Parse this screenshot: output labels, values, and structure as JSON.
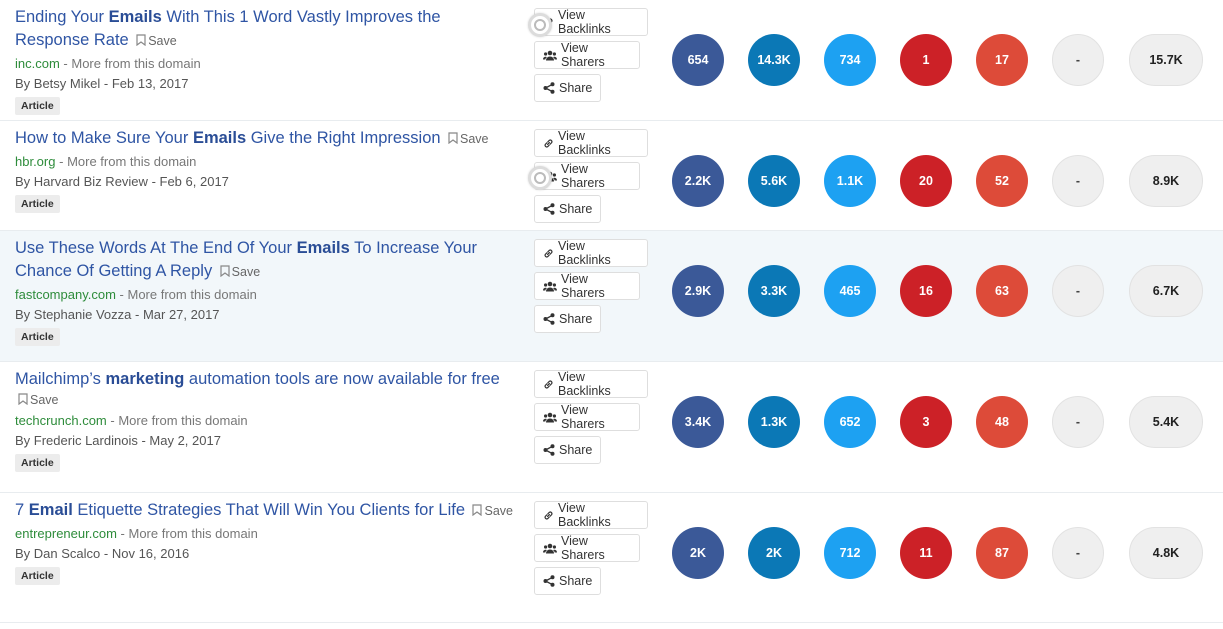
{
  "common": {
    "save_label": "Save",
    "more_from_domain": "More from this domain",
    "view_backlinks": "View Backlinks",
    "view_sharers": "View Sharers",
    "share": "Share"
  },
  "colors": {
    "facebook": "#3b5998",
    "linkedin": "#0b78b6",
    "twitter": "#1da1f2",
    "pinterest": "#cc2127",
    "googleplus": "#dd4b39",
    "empty": "#efefef",
    "title_link": "#2f55a4",
    "domain": "#2e8c3b"
  },
  "articles": [
    {
      "title_pre": "Ending Your ",
      "title_bold": "Emails",
      "title_post": " With This 1 Word Vastly Improves the Response Rate",
      "domain": "inc.com",
      "author": "By Betsy Mikel",
      "date": "Feb 13, 2017",
      "tag": "Article",
      "metrics": {
        "facebook": "654",
        "linkedin": "14.3K",
        "twitter": "734",
        "pinterest": "1",
        "googleplus": "17",
        "reddit": "-",
        "total": "15.7K"
      }
    },
    {
      "title_pre": "How to Make Sure Your ",
      "title_bold": "Emails",
      "title_post": " Give the Right Impression",
      "domain": "hbr.org",
      "author": "By Harvard Biz Review",
      "date": "Feb 6, 2017",
      "tag": "Article",
      "metrics": {
        "facebook": "2.2K",
        "linkedin": "5.6K",
        "twitter": "1.1K",
        "pinterest": "20",
        "googleplus": "52",
        "reddit": "-",
        "total": "8.9K"
      }
    },
    {
      "title_pre": "Use These Words At The End Of Your ",
      "title_bold": "Emails",
      "title_post": " To Increase Your Chance Of Getting A Reply",
      "domain": "fastcompany.com",
      "author": "By Stephanie Vozza",
      "date": "Mar 27, 2017",
      "tag": "Article",
      "metrics": {
        "facebook": "2.9K",
        "linkedin": "3.3K",
        "twitter": "465",
        "pinterest": "16",
        "googleplus": "63",
        "reddit": "-",
        "total": "6.7K"
      }
    },
    {
      "title_pre": "Mailchimp’s ",
      "title_bold": "marketing",
      "title_post": " automation tools are now available for free",
      "domain": "techcrunch.com",
      "author": "By Frederic Lardinois",
      "date": "May 2, 2017",
      "tag": "Article",
      "metrics": {
        "facebook": "3.4K",
        "linkedin": "1.3K",
        "twitter": "652",
        "pinterest": "3",
        "googleplus": "48",
        "reddit": "-",
        "total": "5.4K"
      }
    },
    {
      "title_pre": "7 ",
      "title_bold": "Email",
      "title_post": " Etiquette Strategies That Will Win You Clients for Life",
      "domain": "entrepreneur.com",
      "author": "By Dan Scalco",
      "date": "Nov 16, 2016",
      "tag": "Article",
      "metrics": {
        "facebook": "2K",
        "linkedin": "2K",
        "twitter": "712",
        "pinterest": "11",
        "googleplus": "87",
        "reddit": "-",
        "total": "4.8K"
      }
    }
  ]
}
